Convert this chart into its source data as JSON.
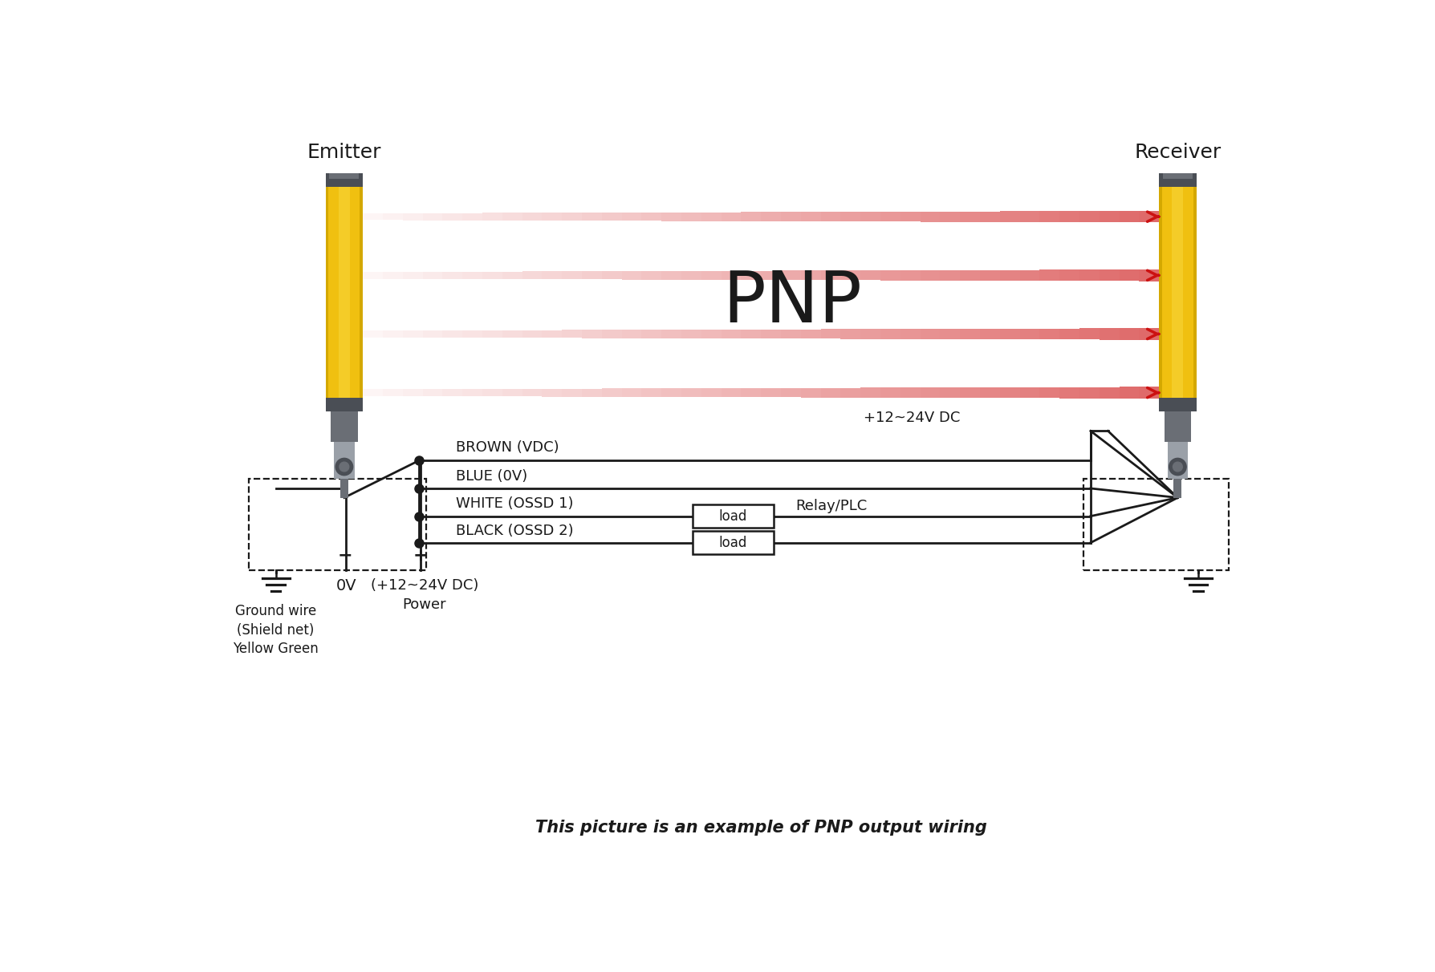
{
  "title": "PNP",
  "subtitle": "This picture is an example of PNP output wiring",
  "emitter_label": "Emitter",
  "receiver_label": "Receiver",
  "wire_labels": [
    "BROWN (VDC)",
    "BLUE (0V)",
    "WHITE (OSSD 1)",
    "BLACK (OSSD 2)"
  ],
  "right_label_vdc": "+12~24V DC",
  "right_label_relay": "Relay/PLC",
  "load_label": "load",
  "ground_label": "Ground wire\n(Shield net)\nYellow Green",
  "neg_label": "0V",
  "pos_label": "(+12~24V DC)\nPower",
  "minus_sign": "−",
  "bg_color": "#ffffff",
  "line_color": "#1a1a1a",
  "sensor_yellow": "#f0c010",
  "sensor_yellow_light": "#f8d840",
  "sensor_yellow_dark": "#d4a800",
  "sensor_gray_dark": "#4a4e55",
  "sensor_gray_mid": "#6a6e75",
  "sensor_gray_light": "#9aa0a8",
  "sensor_gray_connector": "#7a8088",
  "arrow_red": "#cc1111",
  "figsize": [
    17.88,
    12.12
  ],
  "dpi": 100
}
